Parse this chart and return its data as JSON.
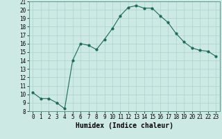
{
  "x": [
    0,
    1,
    2,
    3,
    4,
    5,
    6,
    7,
    8,
    9,
    10,
    11,
    12,
    13,
    14,
    15,
    16,
    17,
    18,
    19,
    20,
    21,
    22,
    23
  ],
  "y": [
    10.2,
    9.5,
    9.5,
    9.0,
    8.3,
    14.0,
    16.0,
    15.8,
    15.3,
    16.5,
    17.8,
    19.3,
    20.3,
    20.5,
    20.2,
    20.2,
    19.3,
    18.5,
    17.2,
    16.2,
    15.5,
    15.2,
    15.1,
    14.5
  ],
  "xlabel": "Humidex (Indice chaleur)",
  "xlim": [
    -0.5,
    23.5
  ],
  "ylim": [
    8,
    21
  ],
  "yticks": [
    8,
    9,
    10,
    11,
    12,
    13,
    14,
    15,
    16,
    17,
    18,
    19,
    20,
    21
  ],
  "xticks": [
    0,
    1,
    2,
    3,
    4,
    5,
    6,
    7,
    8,
    9,
    10,
    11,
    12,
    13,
    14,
    15,
    16,
    17,
    18,
    19,
    20,
    21,
    22,
    23
  ],
  "bg_color": "#cce9e4",
  "line_color": "#1a6b5a",
  "grid_color": "#aad4cc",
  "tick_fontsize": 5.5,
  "xlabel_fontsize": 7.0
}
